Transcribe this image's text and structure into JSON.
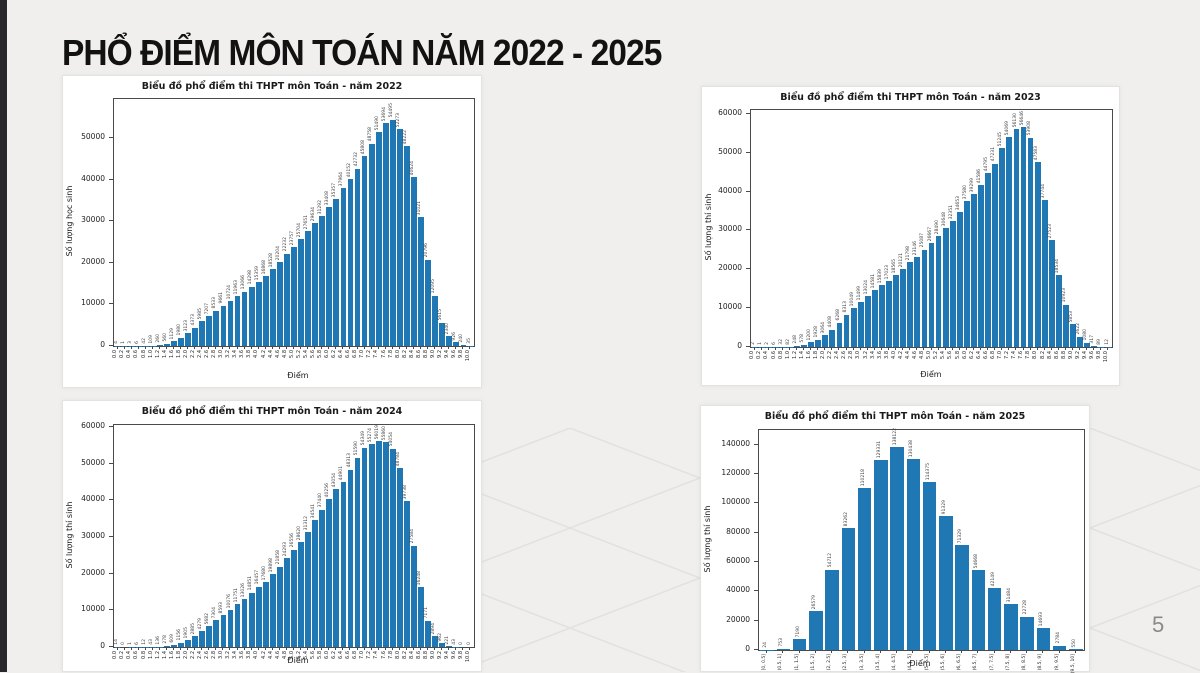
{
  "page": {
    "title": "PHỔ ĐIỂM MÔN TOÁN NĂM 2022 - 2025",
    "page_number": "5",
    "accent_color": "#28282c",
    "background_pattern": "diamond-grid"
  },
  "chart_data": [
    {
      "type": "bar",
      "title": "Biểu đồ phổ điểm thi THPT môn Toán - năm 2022",
      "xlabel": "Điểm",
      "ylabel": "Số lượng học sinh",
      "bar_color": "#1f77b4",
      "grid": false,
      "legend": "none",
      "ylim": [
        0,
        59500
      ],
      "yticks": [
        0,
        10000,
        20000,
        30000,
        40000,
        50000
      ],
      "categories": [
        "0.0",
        "0.2",
        "0.4",
        "0.6",
        "0.8",
        "1.0",
        "1.2",
        "1.4",
        "1.6",
        "1.8",
        "2.0",
        "2.2",
        "2.4",
        "2.6",
        "2.8",
        "3.0",
        "3.2",
        "3.4",
        "3.6",
        "3.8",
        "4.0",
        "4.2",
        "4.4",
        "4.6",
        "4.8",
        "5.0",
        "5.2",
        "5.4",
        "5.6",
        "5.8",
        "6.0",
        "6.2",
        "6.4",
        "6.6",
        "6.8",
        "7.0",
        "7.2",
        "7.4",
        "7.6",
        "7.8",
        "8.0",
        "8.2",
        "8.4",
        "8.6",
        "8.8",
        "9.0",
        "9.2",
        "9.4",
        "9.6",
        "9.8",
        "10.0"
      ],
      "values": [
        4,
        1,
        3,
        6,
        42,
        109,
        260,
        560,
        1129,
        1980,
        3123,
        4373,
        5985,
        7207,
        8533,
        9661,
        10724,
        11963,
        13066,
        14298,
        15359,
        16868,
        18528,
        20204,
        22232,
        23757,
        25704,
        27651,
        29634,
        31292,
        33408,
        35357,
        37964,
        40152,
        42732,
        45808,
        48758,
        51490,
        53694,
        54495,
        52273,
        48222,
        40624,
        31021,
        20796,
        12095,
        5615,
        2340,
        926,
        240,
        35
      ]
    },
    {
      "type": "bar",
      "title": "Biểu đồ phổ điểm thi THPT môn Toán - năm 2023",
      "xlabel": "Điểm",
      "ylabel": "Số lượng thí sinh",
      "bar_color": "#1f77b4",
      "grid": false,
      "legend": "none",
      "ylim": [
        0,
        61000
      ],
      "yticks": [
        0,
        10000,
        20000,
        30000,
        40000,
        50000,
        60000
      ],
      "categories": [
        "0.0",
        "0.2",
        "0.4",
        "0.6",
        "0.8",
        "1.0",
        "1.2",
        "1.4",
        "1.6",
        "1.8",
        "2.0",
        "2.2",
        "2.4",
        "2.6",
        "2.8",
        "3.0",
        "3.2",
        "3.4",
        "3.6",
        "3.8",
        "4.0",
        "4.2",
        "4.4",
        "4.6",
        "4.8",
        "5.0",
        "5.2",
        "5.4",
        "5.6",
        "5.8",
        "6.0",
        "6.2",
        "6.4",
        "6.6",
        "6.8",
        "7.0",
        "7.2",
        "7.4",
        "7.6",
        "7.8",
        "8.0",
        "8.2",
        "8.4",
        "8.6",
        "8.8",
        "9.0",
        "9.2",
        "9.4",
        "9.6",
        "9.8",
        "10.0"
      ],
      "values": [
        2,
        1,
        2,
        6,
        32,
        82,
        248,
        578,
        1200,
        1928,
        3064,
        4408,
        6268,
        8313,
        10049,
        11499,
        13024,
        14581,
        15839,
        17023,
        18565,
        20121,
        21798,
        23146,
        25087,
        26667,
        28490,
        30648,
        32351,
        34653,
        37580,
        39299,
        41586,
        44795,
        47231,
        51245,
        54069,
        56130,
        56646,
        53908,
        47583,
        37744,
        27523,
        18534,
        10923,
        5853,
        2622,
        1080,
        317,
        89,
        12
      ]
    },
    {
      "type": "bar",
      "title": "Biểu đồ phổ điểm thi THPT môn Toán - năm 2024",
      "xlabel": "Điểm",
      "ylabel": "Số lượng thí sinh",
      "bar_color": "#1f77b4",
      "grid": false,
      "legend": "none",
      "ylim": [
        0,
        60500
      ],
      "yticks": [
        0,
        10000,
        20000,
        30000,
        40000,
        50000,
        60000
      ],
      "categories": [
        "0.0",
        "0.2",
        "0.4",
        "0.6",
        "0.8",
        "1.0",
        "1.2",
        "1.4",
        "1.6",
        "1.8",
        "2.0",
        "2.2",
        "2.4",
        "2.6",
        "2.8",
        "3.0",
        "3.2",
        "3.4",
        "3.6",
        "3.8",
        "4.0",
        "4.2",
        "4.4",
        "4.6",
        "4.8",
        "5.0",
        "5.2",
        "5.4",
        "5.6",
        "5.8",
        "6.0",
        "6.2",
        "6.4",
        "6.6",
        "6.8",
        "7.0",
        "7.2",
        "7.4",
        "7.6",
        "7.8",
        "8.0",
        "8.2",
        "8.4",
        "8.6",
        "8.8",
        "9.0",
        "9.2",
        "9.4",
        "9.6",
        "9.8",
        "10.0"
      ],
      "values": [
        14,
        0,
        1,
        6,
        12,
        43,
        136,
        278,
        609,
        1156,
        1905,
        2885,
        4279,
        5682,
        7304,
        8593,
        10076,
        11751,
        13026,
        14851,
        16457,
        17680,
        19898,
        21858,
        24293,
        26556,
        28620,
        31312,
        34541,
        37440,
        40256,
        43054,
        44901,
        48313,
        51590,
        54349,
        55274,
        56019,
        55860,
        54054,
        48784,
        39738,
        27584,
        16248,
        7171,
        2894,
        962,
        221,
        43,
        0,
        0
      ]
    },
    {
      "type": "bar",
      "title": "Biểu đồ phổ điểm thi THPT môn Toán - năm 2025",
      "xlabel": "Điểm",
      "ylabel": "Số lượng thí sinh",
      "bar_color": "#1f77b4",
      "grid": false,
      "legend": "none",
      "ylim": [
        0,
        150000
      ],
      "yticks": [
        0,
        20000,
        40000,
        60000,
        80000,
        100000,
        120000,
        140000
      ],
      "categories": [
        "[0, 0.5]",
        "(0.5, 1]",
        "(1, 1.5]",
        "(1.5, 2]",
        "(2, 2.5]",
        "(2.5, 3]",
        "(3, 3.5]",
        "(3.5, 4]",
        "(4, 4.5]",
        "(4.5, 5]",
        "(5, 5.5]",
        "(5.5, 6]",
        "(6, 6.5]",
        "(6.5, 7]",
        "(7, 7.5]",
        "(7.5, 8]",
        "(8, 8.5]",
        "(8.5, 9]",
        "(9, 9.5]",
        "(9.5, 10]"
      ],
      "values": [
        24,
        753,
        7190,
        26579,
        54712,
        83262,
        110218,
        129331,
        138122,
        130438,
        114375,
        91329,
        71329,
        54668,
        42149,
        31484,
        22728,
        14693,
        2784,
        550
      ]
    }
  ]
}
